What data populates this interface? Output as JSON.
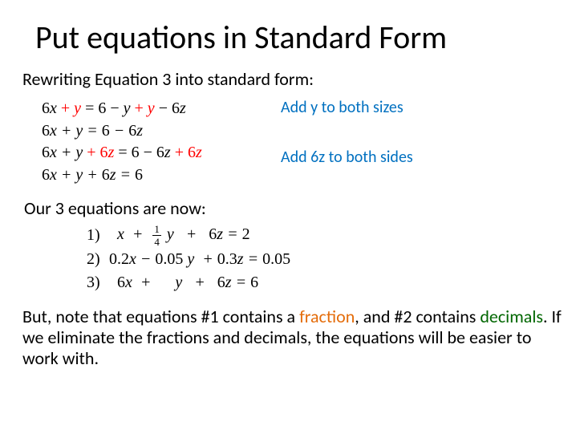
{
  "title": "Put equations in Standard Form",
  "subtitle": "Rewriting Equation 3 into standard form:",
  "steps": {
    "line1_a": "6",
    "line1_b": " + ",
    "line1_c": " = 6 − ",
    "line1_d": " + ",
    "line1_e": " −  6",
    "line2": "6x + y = 6 − 6z",
    "line3_a": "6",
    "line3_b": " + ",
    "line3_c": " + 6",
    "line3_d": " = 6 − 6",
    "line3_e": " + 6",
    "line4": "6x + y + 6z = 6"
  },
  "annotations": {
    "a1": "Add y to both sizes",
    "a2": "Add 6z to both sides"
  },
  "subheading": "Our 3 equations are now:",
  "equations": {
    "m1": "1)",
    "e1_a": "x  +  ",
    "e1_frac_top": "1",
    "e1_frac_bot": "4",
    "e1_b": " y   +   6z = 2",
    "m2": "2)",
    "e2": "0.2x − 0.05 y  + 0.3z = 0.05",
    "m3": "3)",
    "e3": "6x  +      y   +   6z = 6"
  },
  "body": {
    "t1": "But, note that equations #1 contains a ",
    "t2": "fraction",
    "t3": ", and #2 contains ",
    "t4": "decimals",
    "t5": ".  If we eliminate the fractions and decimals, the equations will be easier to work with."
  },
  "colors": {
    "red": "#ff0000",
    "blue": "#0070c0",
    "orange": "#e46c0a",
    "green": "#006600"
  }
}
